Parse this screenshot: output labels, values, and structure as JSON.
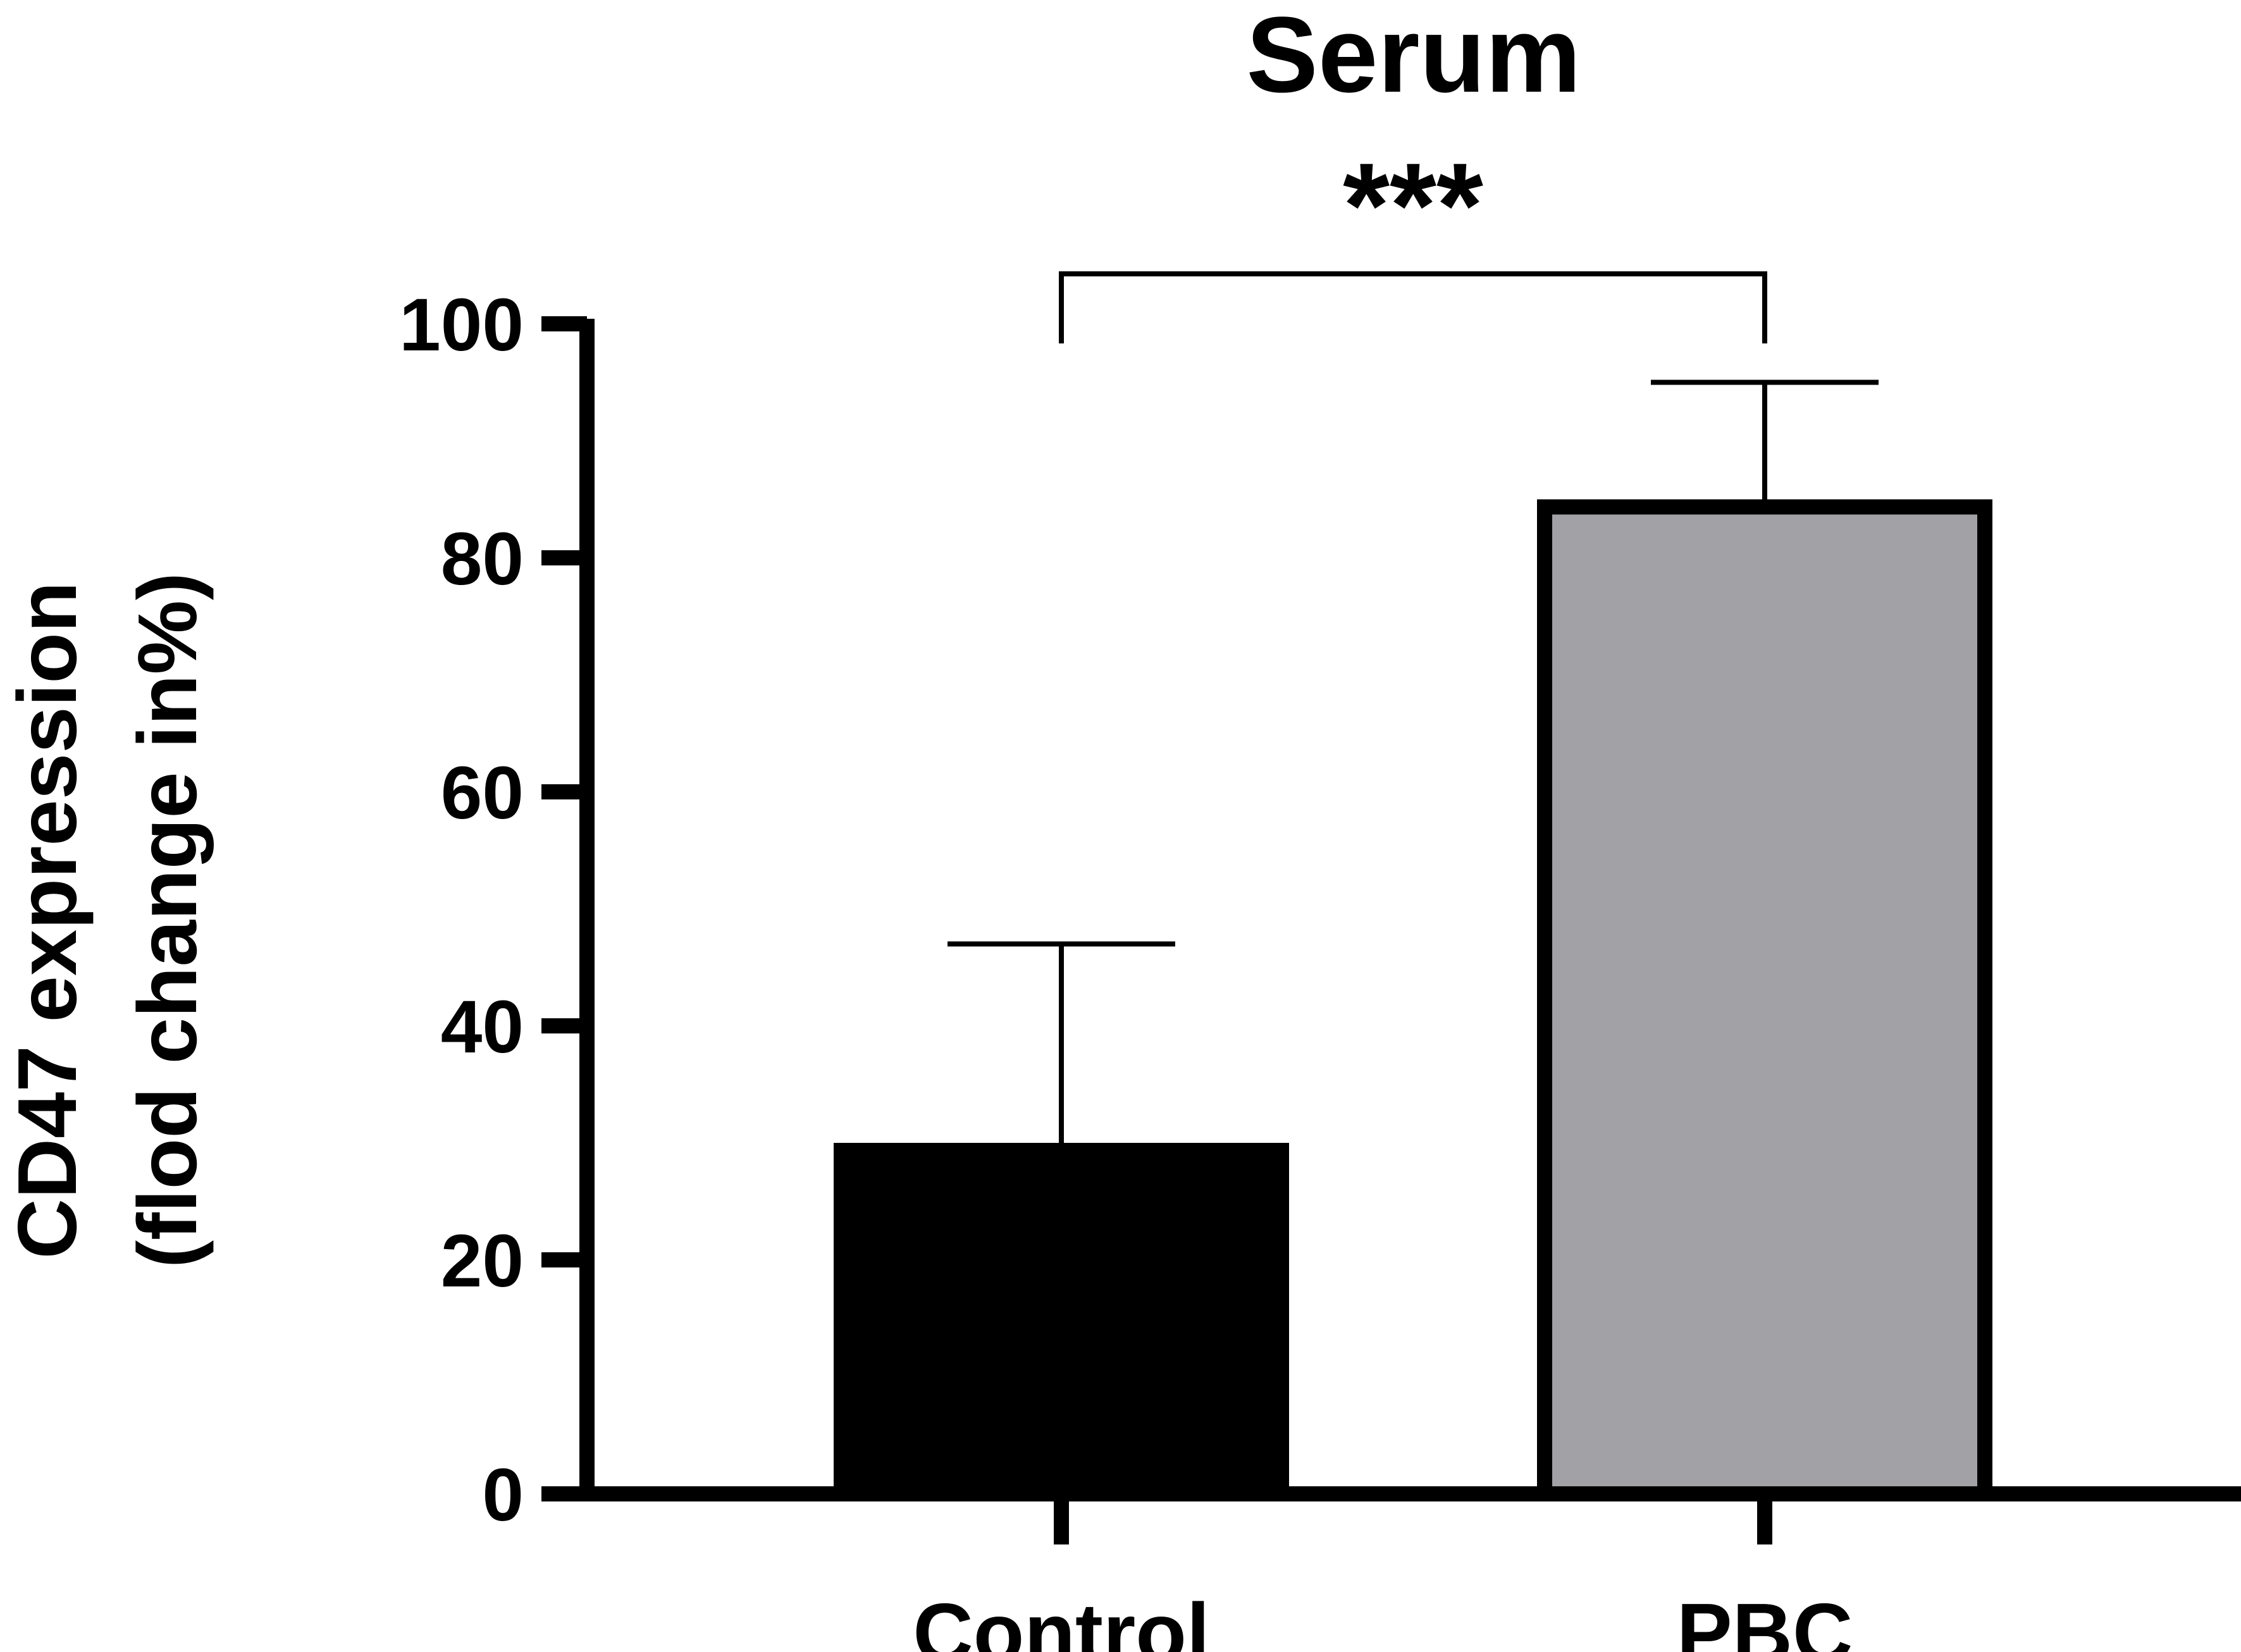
{
  "chart_data": {
    "type": "bar",
    "title": "Serum",
    "xlabel": "",
    "ylabel": [
      "CD47 expression",
      "(flod change in%)"
    ],
    "categories": [
      "Control",
      "PBC"
    ],
    "values": [
      30,
      85
    ],
    "error_upper": [
      47,
      95
    ],
    "bar_colors": [
      "#000000",
      "#a2a1a6"
    ],
    "ylim": [
      0,
      100
    ],
    "yticks": [
      0,
      20,
      40,
      60,
      80,
      100
    ],
    "ytick_labels": [
      "0",
      "20",
      "40",
      "60",
      "80",
      "100"
    ],
    "significance": {
      "between": [
        "Control",
        "PBC"
      ],
      "label": "***"
    },
    "grid": false,
    "legend": "none"
  }
}
